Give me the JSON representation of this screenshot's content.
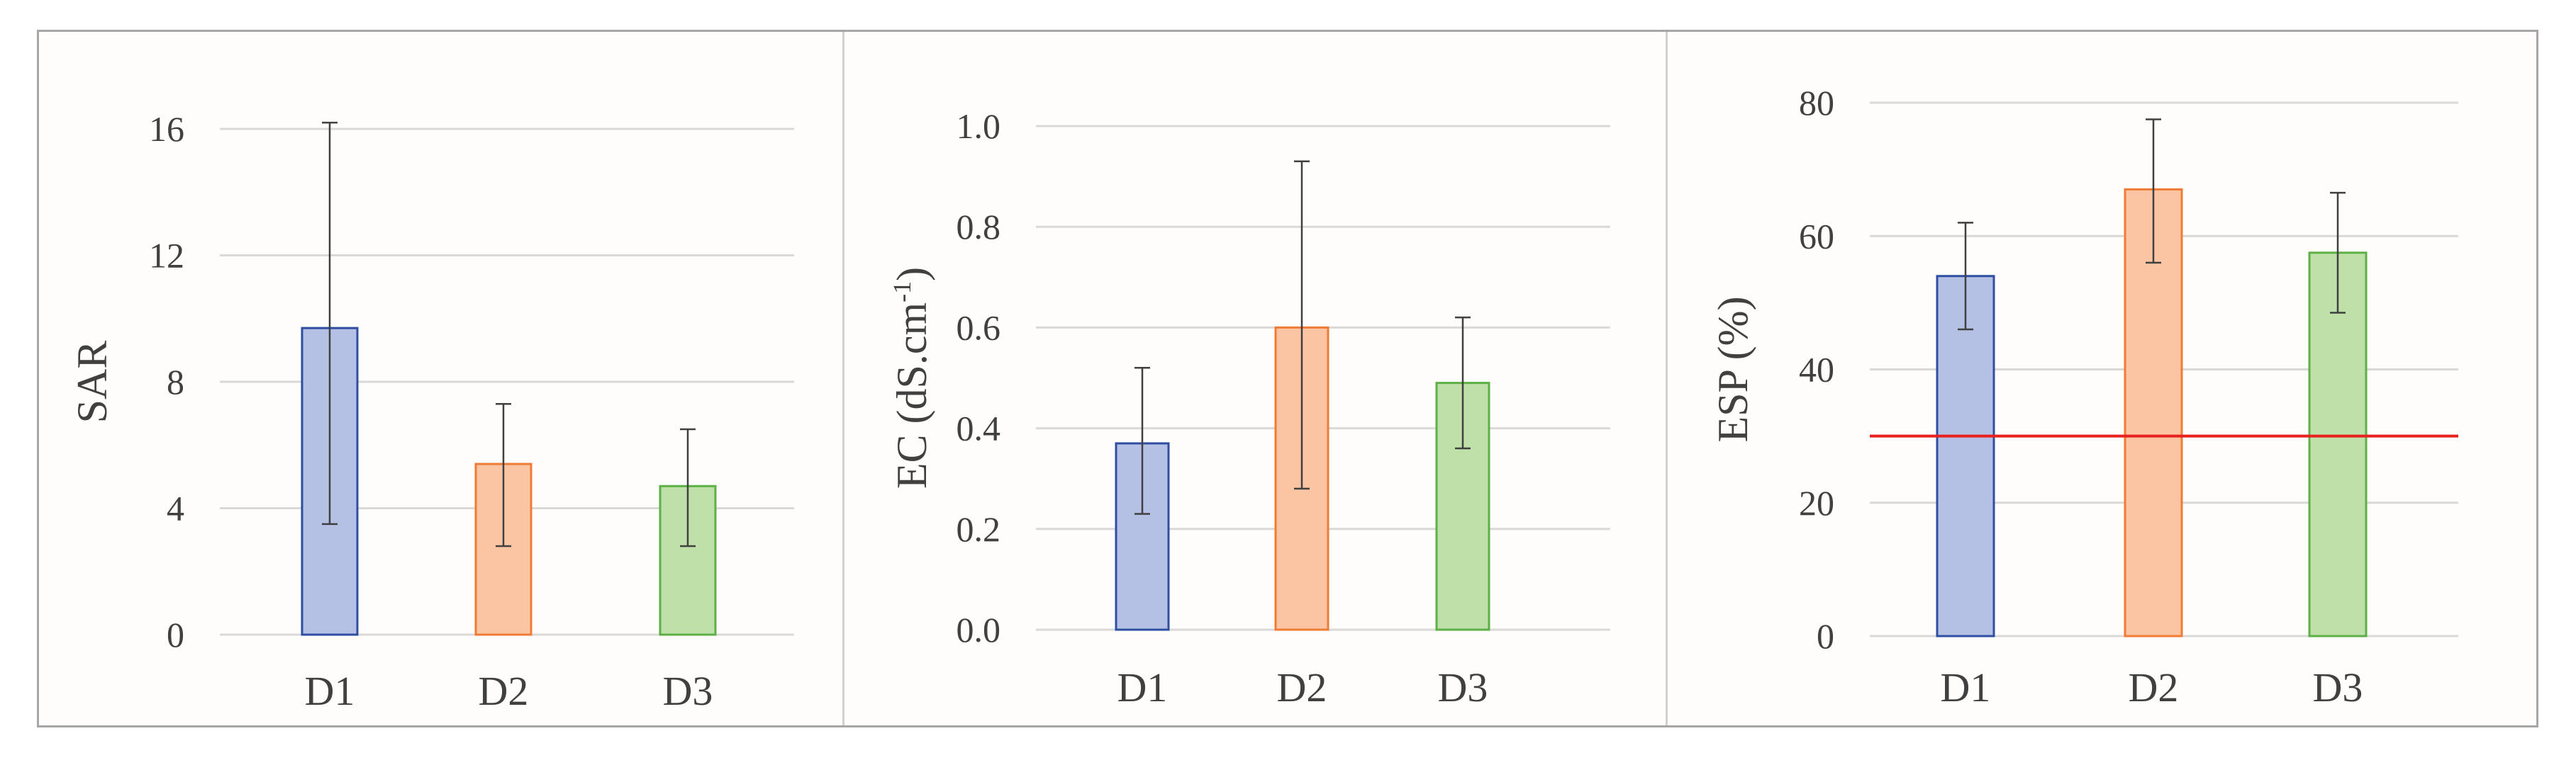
{
  "chart_data": [
    {
      "type": "bar",
      "categories": [
        "D1",
        "D2",
        "D3"
      ],
      "values": [
        9.7,
        5.4,
        4.7
      ],
      "error_low": [
        3.5,
        2.8,
        2.8
      ],
      "error_high": [
        16.2,
        7.3,
        6.5
      ],
      "title": "",
      "xlabel": "",
      "ylabel": "SAR",
      "ylim": [
        0,
        16
      ],
      "yticks": [
        "0",
        "4",
        "8",
        "12",
        "16"
      ],
      "ytick_values": [
        0,
        4,
        8,
        12,
        16
      ],
      "grid": true
    },
    {
      "type": "bar",
      "categories": [
        "D1",
        "D2",
        "D3"
      ],
      "values": [
        0.37,
        0.6,
        0.49
      ],
      "error_low": [
        0.23,
        0.28,
        0.36
      ],
      "error_high": [
        0.52,
        0.93,
        0.62
      ],
      "title": "",
      "xlabel": "",
      "ylabel": "EC (dS.cm",
      "ylabel_sup": "-1",
      "ylabel_close": ")",
      "ylim": [
        0,
        1.0
      ],
      "yticks": [
        "0.0",
        "0.2",
        "0.4",
        "0.6",
        "0.8",
        "1.0"
      ],
      "ytick_values": [
        0,
        0.2,
        0.4,
        0.6,
        0.8,
        1.0
      ],
      "grid": true
    },
    {
      "type": "bar",
      "categories": [
        "D1",
        "D2",
        "D3"
      ],
      "values": [
        54,
        67,
        57.5
      ],
      "error_low": [
        46,
        56,
        48.5
      ],
      "error_high": [
        62,
        77.5,
        66.5
      ],
      "title": "",
      "xlabel": "",
      "ylabel": "ESP (%)",
      "ylim": [
        0,
        80
      ],
      "yticks": [
        "0",
        "20",
        "40",
        "60",
        "80"
      ],
      "ytick_values": [
        0,
        20,
        40,
        60,
        80
      ],
      "grid": true,
      "reference_line": 30
    }
  ],
  "colors": {
    "bar_fills": [
      "#b4c0e4",
      "#fbc4a2",
      "#bfe0a8"
    ],
    "bar_strokes": [
      "#2f4ea2",
      "#f07b36",
      "#5cb045"
    ],
    "reference_line": "#e8201e",
    "gridline": "#d9d9d9",
    "error_bar": "#404040"
  }
}
